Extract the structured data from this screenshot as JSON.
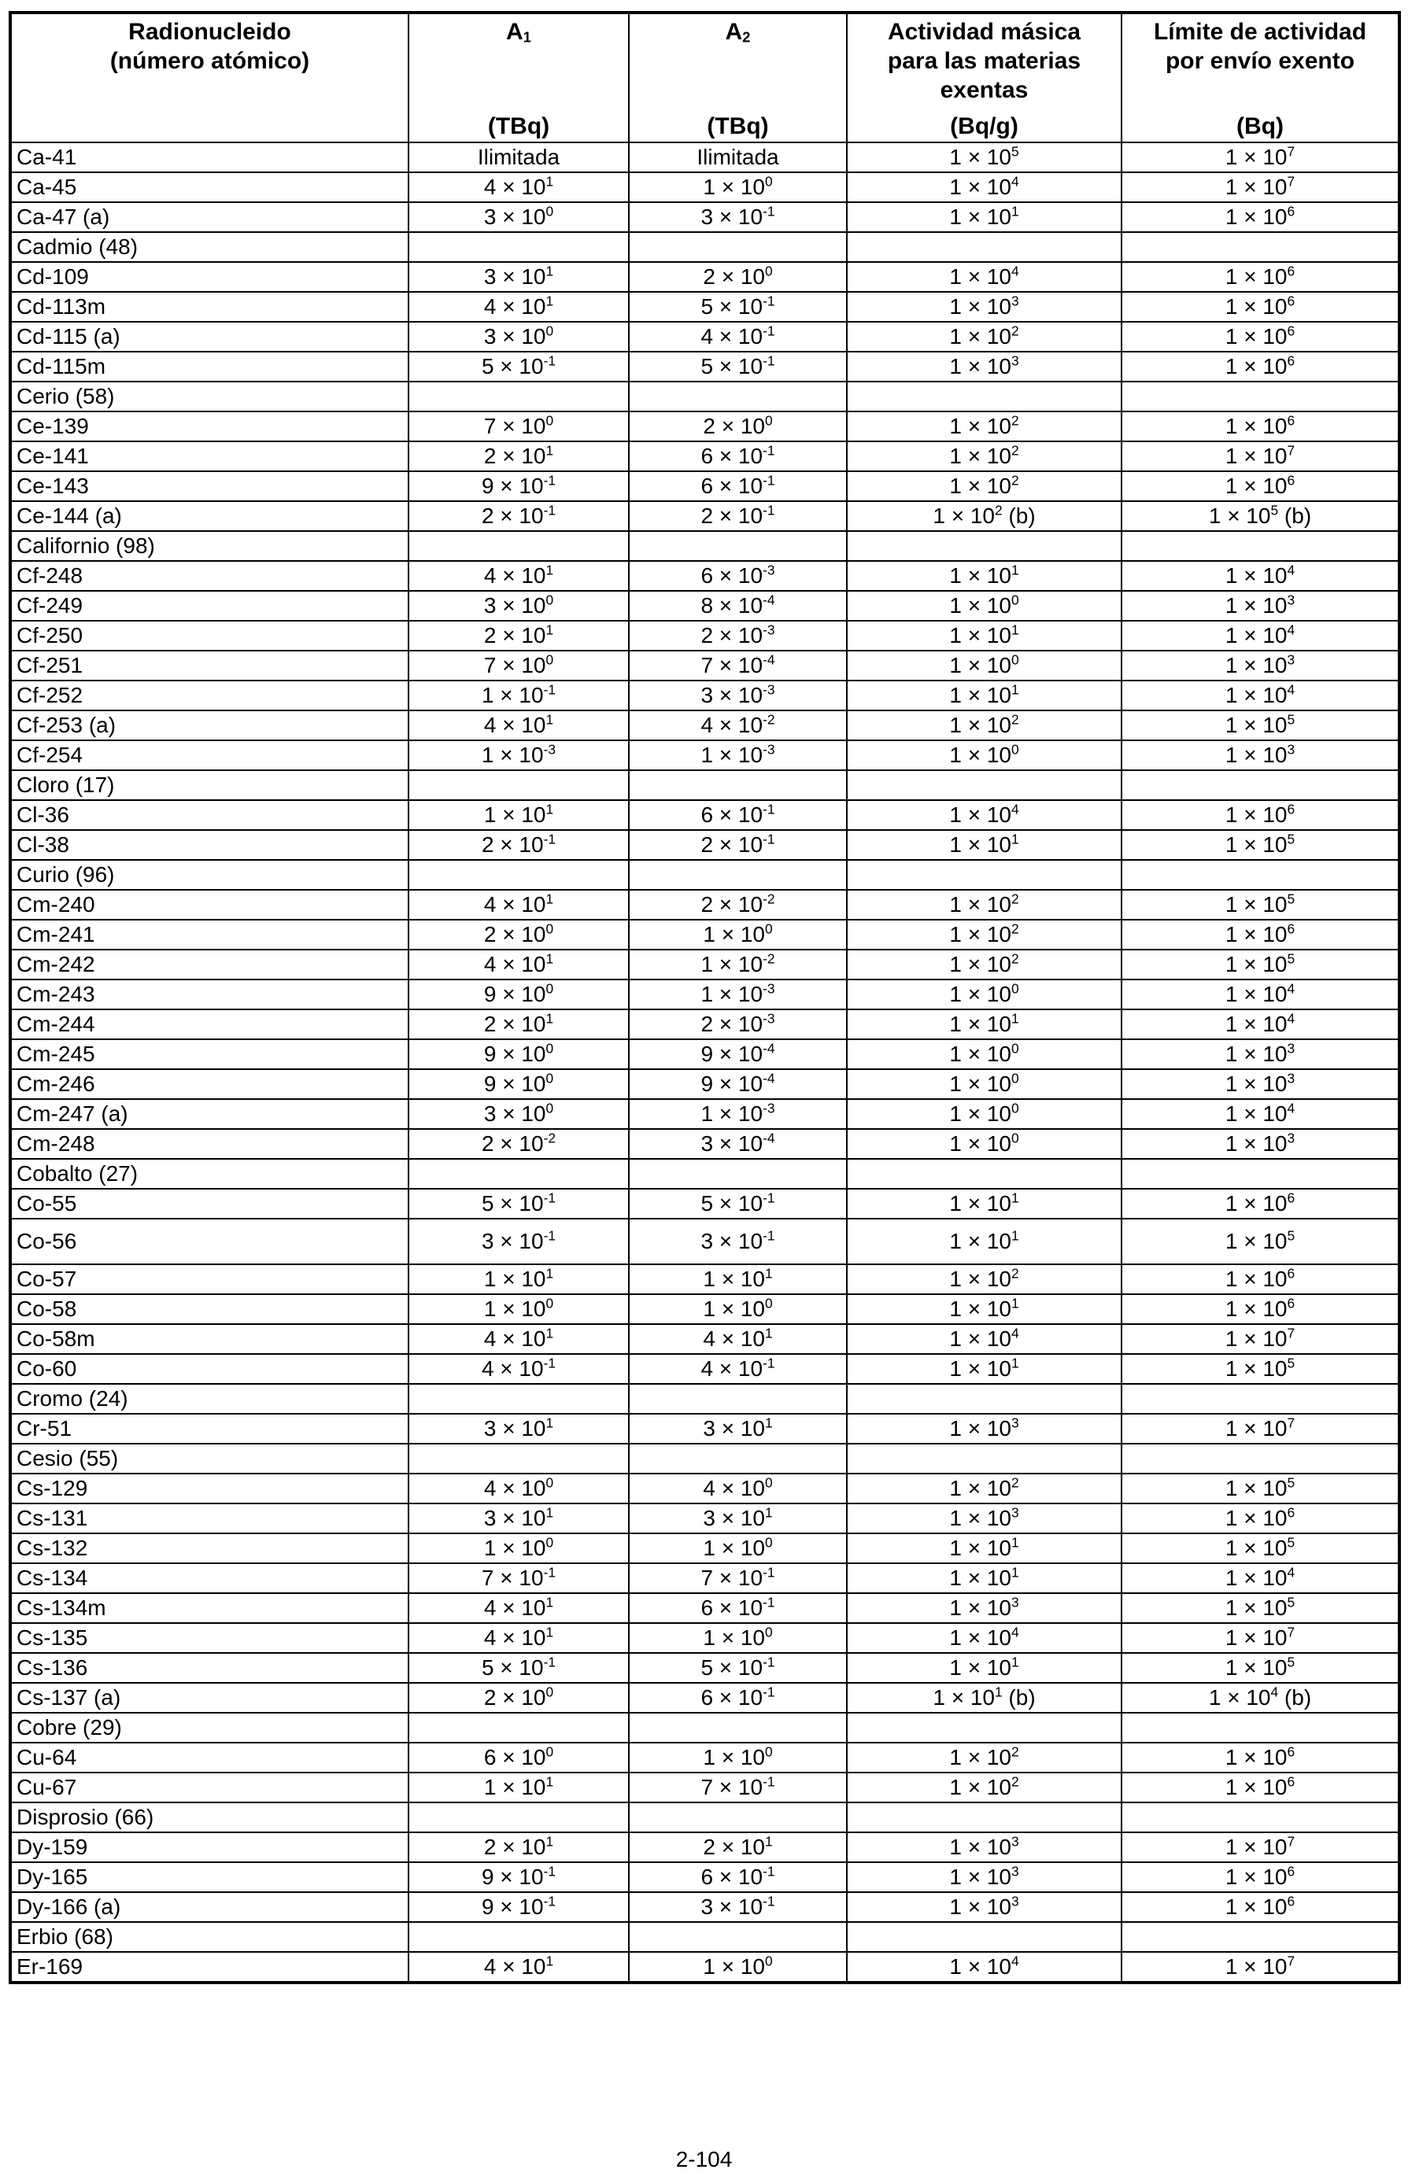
{
  "table": {
    "headers": {
      "radionuclide": {
        "line1": "Radionucleido",
        "line2": "(número atómico)"
      },
      "a1": {
        "symbol": "A",
        "sub": "1",
        "unit": "(TBq)"
      },
      "a2": {
        "symbol": "A",
        "sub": "2",
        "unit": "(TBq)"
      },
      "mass_activity": {
        "line1": "Actividad másica",
        "line2": "para las materias",
        "line3": "exentas",
        "unit": "(Bq/g)"
      },
      "consignment_limit": {
        "line1": "Límite de actividad",
        "line2": "por envío exento",
        "unit": "(Bq)"
      }
    },
    "rows": [
      {
        "n": "Ca-41",
        "a1": "Ilimitada",
        "a2": "Ilimitada",
        "m": "1 × 10^5",
        "c": "1 × 10^7"
      },
      {
        "n": "Ca-45",
        "a1": "4 × 10^1",
        "a2": "1 × 10^0",
        "m": "1 × 10^4",
        "c": "1 × 10^7"
      },
      {
        "n": "Ca-47 (a)",
        "a1": "3 × 10^0",
        "a2": "3 × 10^-1",
        "m": "1 × 10^1",
        "c": "1 × 10^6"
      },
      {
        "n": "Cadmio (48)",
        "group": true
      },
      {
        "n": "Cd-109",
        "a1": "3 × 10^1",
        "a2": "2 × 10^0",
        "m": "1 × 10^4",
        "c": "1 × 10^6"
      },
      {
        "n": "Cd-113m",
        "a1": "4 × 10^1",
        "a2": "5 × 10^-1",
        "m": "1 × 10^3",
        "c": "1 × 10^6"
      },
      {
        "n": "Cd-115 (a)",
        "a1": "3 × 10^0",
        "a2": "4 × 10^-1",
        "m": "1 × 10^2",
        "c": "1 × 10^6"
      },
      {
        "n": "Cd-115m",
        "a1": "5 × 10^-1",
        "a2": "5 × 10^-1",
        "m": "1 × 10^3",
        "c": "1 × 10^6"
      },
      {
        "n": "Cerio (58)",
        "group": true
      },
      {
        "n": "Ce-139",
        "a1": "7 × 10^0",
        "a2": "2 × 10^0",
        "m": "1 × 10^2",
        "c": "1 × 10^6"
      },
      {
        "n": "Ce-141",
        "a1": "2 × 10^1",
        "a2": "6 × 10^-1",
        "m": "1 × 10^2",
        "c": "1 × 10^7"
      },
      {
        "n": "Ce-143",
        "a1": "9 × 10^-1",
        "a2": "6 × 10^-1",
        "m": "1 × 10^2",
        "c": "1 × 10^6"
      },
      {
        "n": "Ce-144 (a)",
        "a1": "2 × 10^-1",
        "a2": "2 × 10^-1",
        "m": "1 × 10^2 (b)",
        "c": "1 × 10^5 (b)"
      },
      {
        "n": "Californio (98)",
        "group": true
      },
      {
        "n": "Cf-248",
        "a1": "4 × 10^1",
        "a2": "6 × 10^-3",
        "m": "1 × 10^1",
        "c": "1 × 10^4"
      },
      {
        "n": "Cf-249",
        "a1": "3 × 10^0",
        "a2": "8 × 10^-4",
        "m": "1 × 10^0",
        "c": "1 × 10^3"
      },
      {
        "n": "Cf-250",
        "a1": "2 × 10^1",
        "a2": "2 × 10^-3",
        "m": "1 × 10^1",
        "c": "1 × 10^4"
      },
      {
        "n": "Cf-251",
        "a1": "7 × 10^0",
        "a2": "7 × 10^-4",
        "m": "1 × 10^0",
        "c": "1 × 10^3"
      },
      {
        "n": "Cf-252",
        "a1": "1 × 10^-1",
        "a2": "3 × 10^-3",
        "m": "1 × 10^1",
        "c": "1 × 10^4"
      },
      {
        "n": "Cf-253 (a)",
        "a1": "4 × 10^1",
        "a2": "4 × 10^-2",
        "m": "1 × 10^2",
        "c": "1 × 10^5"
      },
      {
        "n": "Cf-254",
        "a1": "1 × 10^-3",
        "a2": "1 × 10^-3",
        "m": "1 × 10^0",
        "c": "1 × 10^3"
      },
      {
        "n": "Cloro (17)",
        "group": true
      },
      {
        "n": "Cl-36",
        "a1": "1 × 10^1",
        "a2": "6 × 10^-1",
        "m": "1 × 10^4",
        "c": "1 × 10^6"
      },
      {
        "n": "Cl-38",
        "a1": "2 × 10^-1",
        "a2": "2 × 10^-1",
        "m": "1 × 10^1",
        "c": "1 × 10^5"
      },
      {
        "n": "Curio (96)",
        "group": true
      },
      {
        "n": "Cm-240",
        "a1": "4 × 10^1",
        "a2": "2 × 10^-2",
        "m": "1 × 10^2",
        "c": "1 × 10^5"
      },
      {
        "n": "Cm-241",
        "a1": "2 × 10^0",
        "a2": "1 × 10^0",
        "m": "1 × 10^2",
        "c": "1 × 10^6"
      },
      {
        "n": "Cm-242",
        "a1": "4 × 10^1",
        "a2": "1 × 10^-2",
        "m": "1 × 10^2",
        "c": "1 × 10^5"
      },
      {
        "n": "Cm-243",
        "a1": "9 × 10^0",
        "a2": "1 × 10^-3",
        "m": "1 × 10^0",
        "c": "1 × 10^4"
      },
      {
        "n": "Cm-244",
        "a1": "2 × 10^1",
        "a2": "2 × 10^-3",
        "m": "1 × 10^1",
        "c": "1 × 10^4"
      },
      {
        "n": "Cm-245",
        "a1": "9 × 10^0",
        "a2": "9 × 10^-4",
        "m": "1 × 10^0",
        "c": "1 × 10^3"
      },
      {
        "n": "Cm-246",
        "a1": "9 × 10^0",
        "a2": "9 × 10^-4",
        "m": "1 × 10^0",
        "c": "1 × 10^3"
      },
      {
        "n": "Cm-247 (a)",
        "a1": "3 × 10^0",
        "a2": "1 × 10^-3",
        "m": "1 × 10^0",
        "c": "1 × 10^4"
      },
      {
        "n": "Cm-248",
        "a1": "2 × 10^-2",
        "a2": "3 × 10^-4",
        "m": "1 × 10^0",
        "c": "1 × 10^3"
      },
      {
        "n": "Cobalto (27)",
        "group": true
      },
      {
        "n": "Co-55",
        "a1": "5 × 10^-1",
        "a2": "5 × 10^-1",
        "m": "1 × 10^1",
        "c": "1 × 10^6"
      },
      {
        "n": "Co-56",
        "a1": "3 × 10^-1",
        "a2": "3 × 10^-1",
        "m": "1 × 10^1",
        "c": "1 × 10^5",
        "tall": true
      },
      {
        "n": "Co-57",
        "a1": "1 × 10^1",
        "a2": "1 × 10^1",
        "m": "1 × 10^2",
        "c": "1 × 10^6"
      },
      {
        "n": "Co-58",
        "a1": "1 × 10^0",
        "a2": "1 × 10^0",
        "m": "1 × 10^1",
        "c": "1 × 10^6"
      },
      {
        "n": "Co-58m",
        "a1": "4 × 10^1",
        "a2": "4 × 10^1",
        "m": "1 × 10^4",
        "c": "1 × 10^7"
      },
      {
        "n": "Co-60",
        "a1": "4 × 10^-1",
        "a2": "4 × 10^-1",
        "m": "1 × 10^1",
        "c": "1 × 10^5"
      },
      {
        "n": "Cromo (24)",
        "group": true
      },
      {
        "n": "Cr-51",
        "a1": "3 × 10^1",
        "a2": "3 × 10^1",
        "m": "1 × 10^3",
        "c": "1 × 10^7"
      },
      {
        "n": "Cesio (55)",
        "group": true
      },
      {
        "n": "Cs-129",
        "a1": "4 × 10^0",
        "a2": "4 × 10^0",
        "m": "1 × 10^2",
        "c": "1 × 10^5"
      },
      {
        "n": "Cs-131",
        "a1": "3 × 10^1",
        "a2": "3 × 10^1",
        "m": "1 × 10^3",
        "c": "1 × 10^6"
      },
      {
        "n": "Cs-132",
        "a1": "1 × 10^0",
        "a2": "1 × 10^0",
        "m": "1 × 10^1",
        "c": "1 × 10^5"
      },
      {
        "n": "Cs-134",
        "a1": "7 × 10^-1",
        "a2": "7 × 10^-1",
        "m": "1 × 10^1",
        "c": "1 × 10^4"
      },
      {
        "n": "Cs-134m",
        "a1": "4 × 10^1",
        "a2": "6 × 10^-1",
        "m": "1 × 10^3",
        "c": "1 × 10^5"
      },
      {
        "n": "Cs-135",
        "a1": "4 × 10^1",
        "a2": "1 × 10^0",
        "m": "1 × 10^4",
        "c": "1 × 10^7"
      },
      {
        "n": "Cs-136",
        "a1": "5 × 10^-1",
        "a2": "5 × 10^-1",
        "m": "1 × 10^1",
        "c": "1 × 10^5"
      },
      {
        "n": "Cs-137 (a)",
        "a1": "2 × 10^0",
        "a2": "6 × 10^-1",
        "m": "1 × 10^1 (b)",
        "c": "1 × 10^4 (b)"
      },
      {
        "n": "Cobre (29)",
        "group": true
      },
      {
        "n": "Cu-64",
        "a1": "6 × 10^0",
        "a2": "1 × 10^0",
        "m": "1 × 10^2",
        "c": "1 × 10^6"
      },
      {
        "n": "Cu-67",
        "a1": "1 × 10^1",
        "a2": "7 × 10^-1",
        "m": "1 × 10^2",
        "c": "1 × 10^6"
      },
      {
        "n": "Disprosio (66)",
        "group": true
      },
      {
        "n": "Dy-159",
        "a1": "2 × 10^1",
        "a2": "2 × 10^1",
        "m": "1 × 10^3",
        "c": "1 × 10^7"
      },
      {
        "n": "Dy-165",
        "a1": "9 × 10^-1",
        "a2": "6 × 10^-1",
        "m": "1 × 10^3",
        "c": "1 × 10^6"
      },
      {
        "n": "Dy-166 (a)",
        "a1": "9 × 10^-1",
        "a2": "3 × 10^-1",
        "m": "1 × 10^3",
        "c": "1 × 10^6"
      },
      {
        "n": "Erbio (68)",
        "group": true
      },
      {
        "n": "Er-169",
        "a1": "4 × 10^1",
        "a2": "1 × 10^0",
        "m": "1 × 10^4",
        "c": "1 × 10^7"
      }
    ]
  },
  "footer": {
    "page_number": "2-104"
  }
}
